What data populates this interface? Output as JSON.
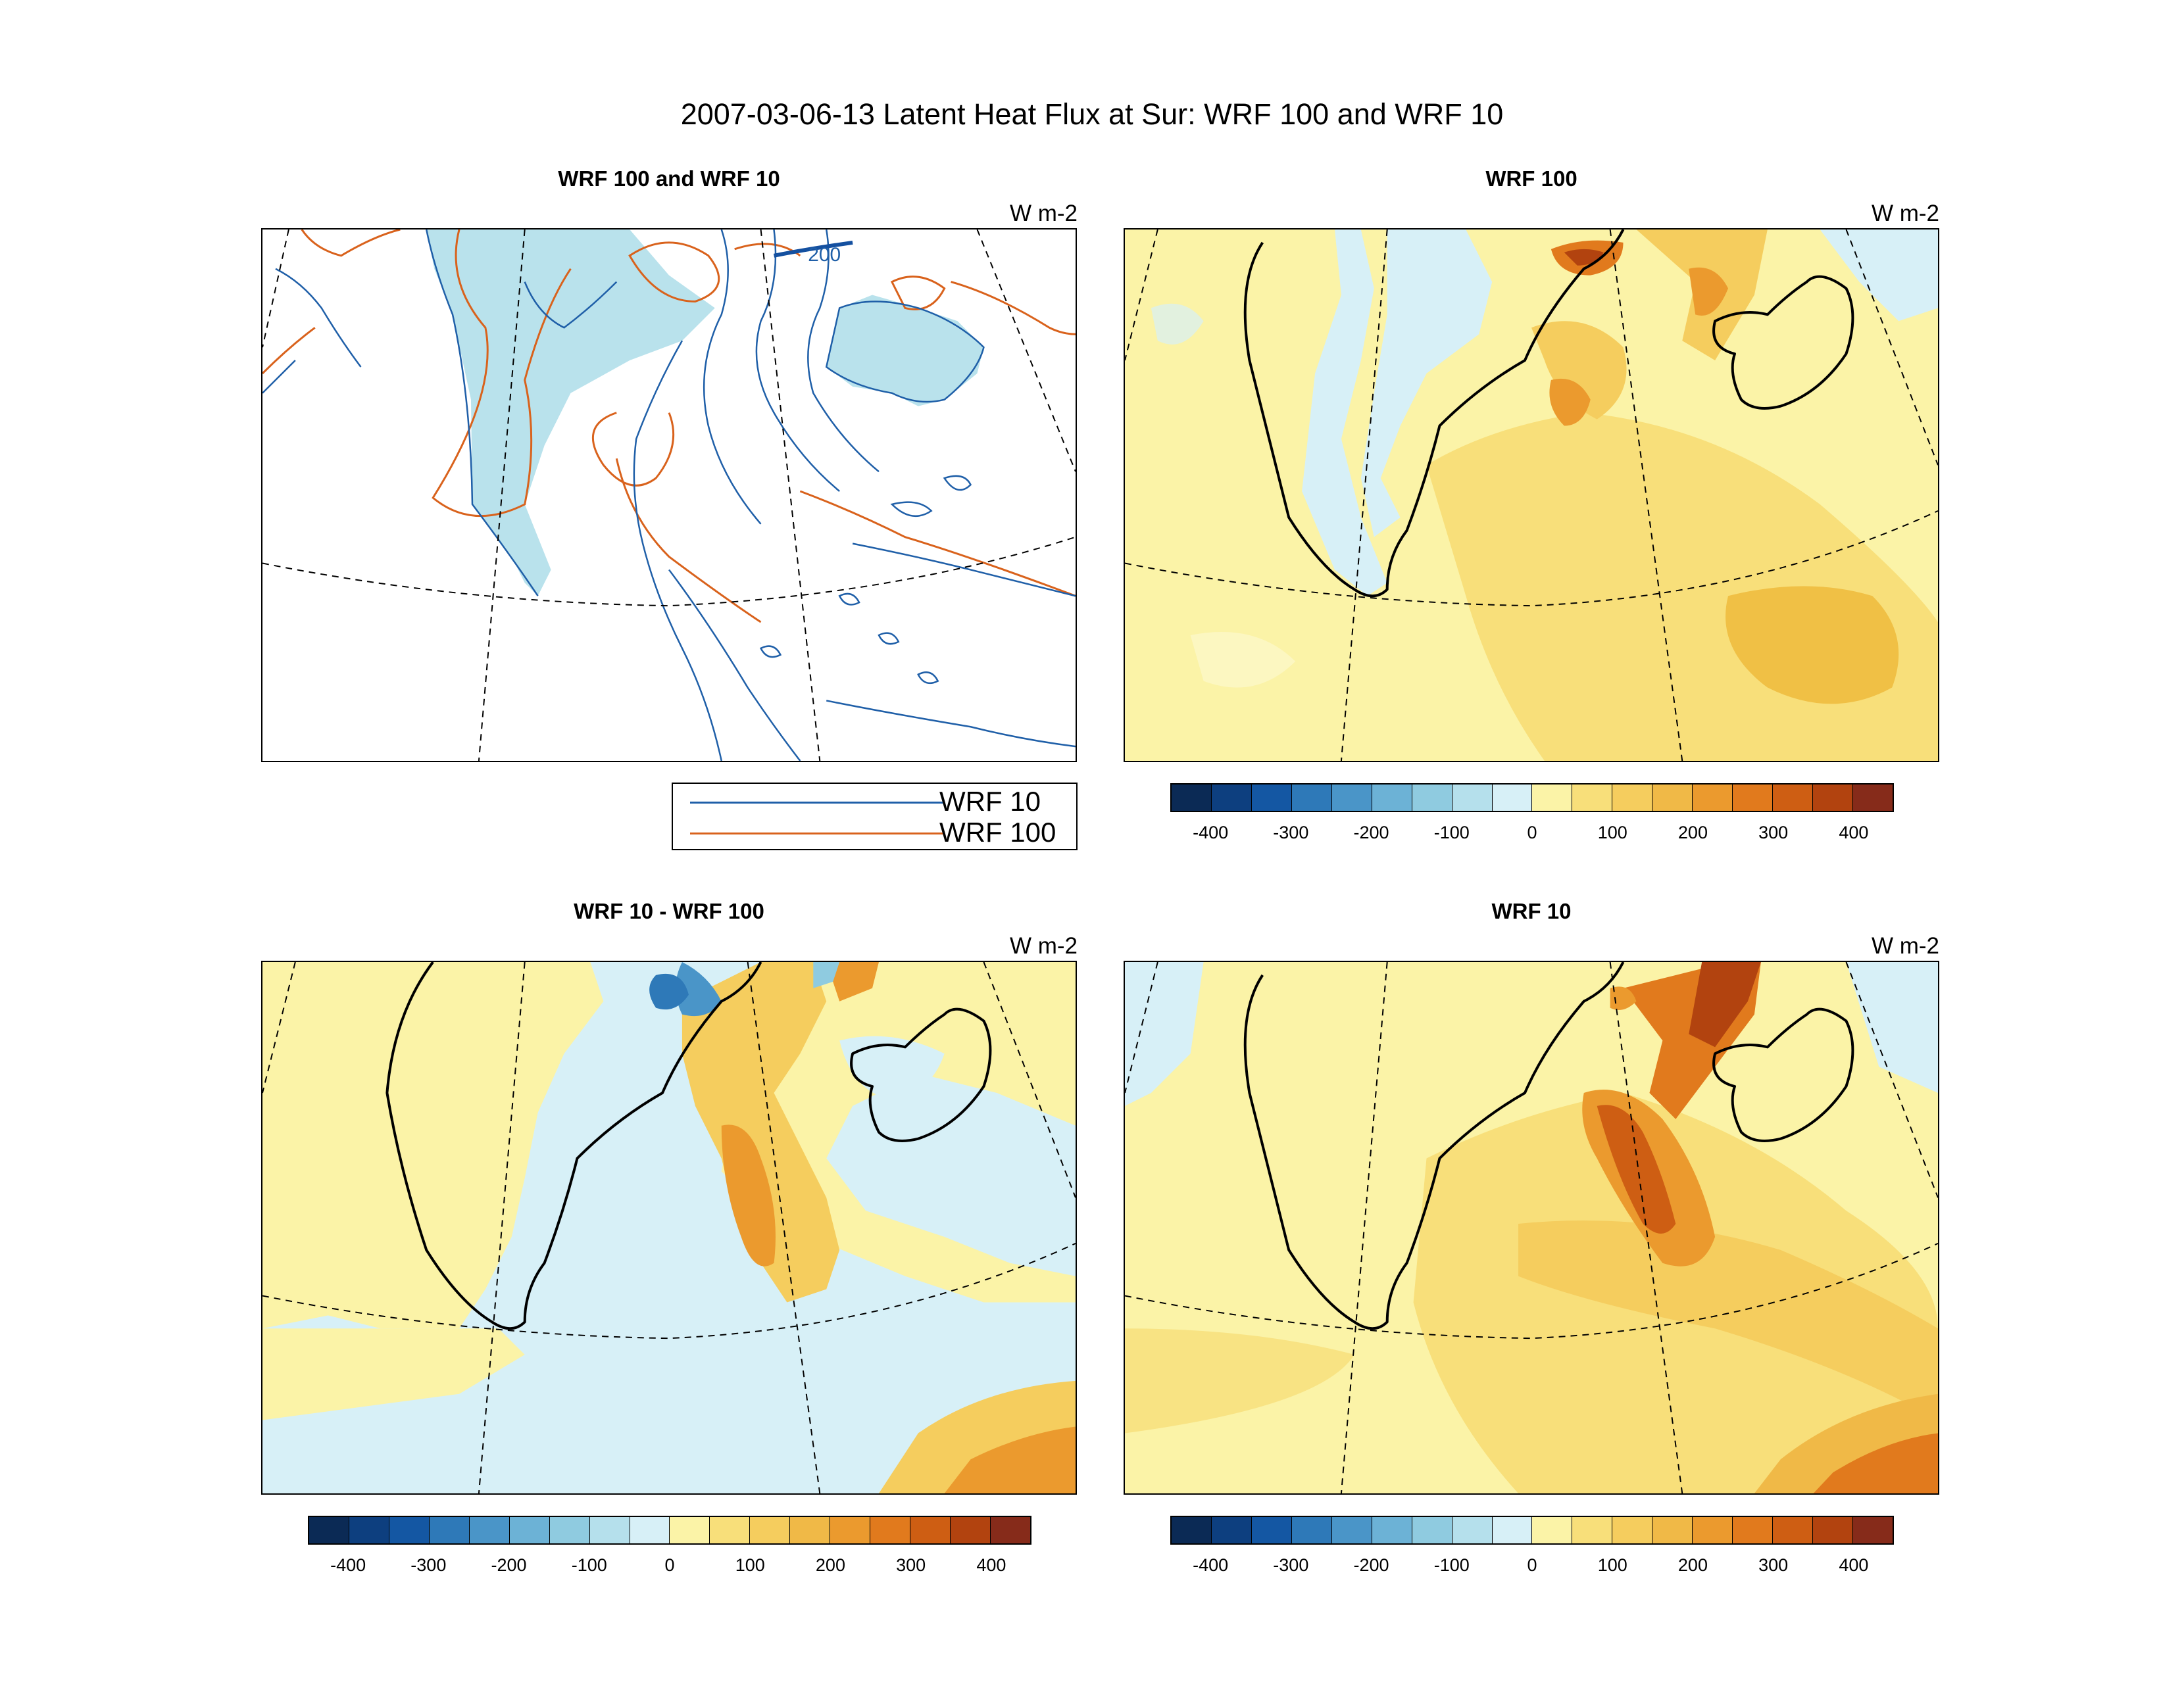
{
  "figure": {
    "title": "2007-03-06-13 Latent Heat Flux at Sur: WRF 100 and WRF 10"
  },
  "panels": [
    {
      "id": "top-left",
      "title": "WRF 100 and WRF 10",
      "units": "W m-2",
      "kind": "contour"
    },
    {
      "id": "top-right",
      "title": "WRF 100",
      "units": "W m-2",
      "kind": "filled"
    },
    {
      "id": "bottom-left",
      "title": "WRF 10 - WRF 100",
      "units": "W m-2",
      "kind": "difference"
    },
    {
      "id": "bottom-right",
      "title": "WRF 10",
      "units": "W m-2",
      "kind": "filled"
    }
  ],
  "contour_legend": [
    {
      "label": "WRF 10",
      "color": "#1f5fa8"
    },
    {
      "label": "WRF 100",
      "color": "#d9621c"
    }
  ],
  "contour_label": "200",
  "colorbar": {
    "colors": [
      "#0b2a55",
      "#0d3f7f",
      "#1457a3",
      "#2e79b8",
      "#4a95c8",
      "#6cb2d6",
      "#8fcbe0",
      "#b5e0ec",
      "#d7f0f7",
      "#fbf3a7",
      "#f8df7a",
      "#f5cd5e",
      "#f0b947",
      "#eb9a2e",
      "#e17a1d",
      "#ce5e13",
      "#b2430f",
      "#862b1a"
    ],
    "labels": [
      "-400",
      "-300",
      "-200",
      "-100",
      "0",
      "100",
      "200",
      "300",
      "400"
    ]
  },
  "chart_data": {
    "type": "heatmap",
    "title": "2007-03-06-13 Latent Heat Flux at Sur: WRF 100 and WRF 10",
    "units": "W m-2",
    "color_levels": [
      -450,
      -400,
      -350,
      -300,
      -250,
      -200,
      -150,
      -100,
      -50,
      0,
      50,
      100,
      150,
      200,
      250,
      300,
      350,
      400,
      450
    ],
    "colorbar_ticks": [
      -400,
      -300,
      -200,
      -100,
      0,
      100,
      200,
      300,
      400
    ],
    "panels": [
      "WRF 100 and WRF 10",
      "WRF 100",
      "WRF 10 - WRF 100",
      "WRF 10"
    ],
    "contour_series": [
      "WRF 10",
      "WRF 100"
    ],
    "contour_labels": [
      200
    ]
  }
}
